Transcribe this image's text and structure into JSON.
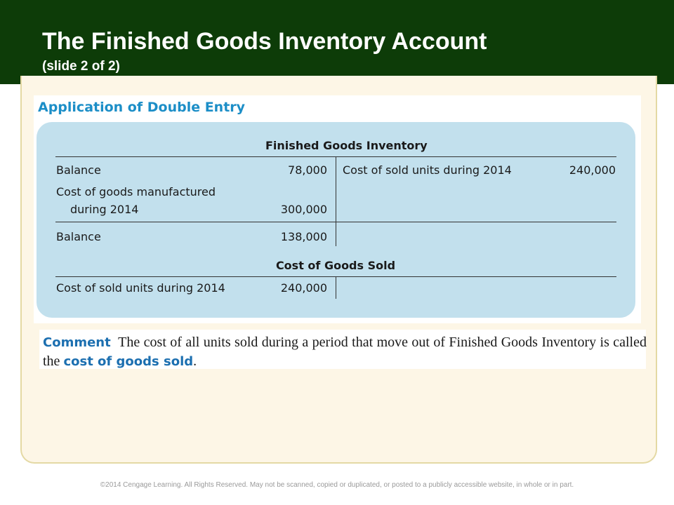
{
  "slide": {
    "title": "The Finished Goods Inventory Account",
    "subtitle": "(slide 2 of 2)"
  },
  "section_title": "Application of Double Entry",
  "finished_goods": {
    "title": "Finished Goods Inventory",
    "debit": [
      {
        "label": "Balance",
        "amount": "78,000"
      },
      {
        "label_line1": "Cost of goods manufactured",
        "label_line2": "during 2014",
        "amount": "300,000"
      }
    ],
    "credit": [
      {
        "label": "Cost of sold units during 2014",
        "amount": "240,000"
      }
    ],
    "ending": {
      "label": "Balance",
      "amount": "138,000"
    }
  },
  "cost_of_goods_sold": {
    "title": "Cost of Goods Sold",
    "debit": [
      {
        "label": "Cost of sold units during 2014",
        "amount": "240,000"
      }
    ]
  },
  "comment": {
    "label": "Comment",
    "text": "The cost of all units sold during a period that move out of Finished Goods Inventory is called the",
    "term": "cost of goods sold",
    "end": "."
  },
  "footer": "©2014 Cengage Learning. All Rights Reserved. May not be scanned, copied or duplicated, or posted to a publicly accessible website, in whole or in part.",
  "colors": {
    "header_bg": "#0d3c08",
    "accent_blue": "#1c8ec7",
    "table_bg": "#c2e0ed",
    "frame_bg": "#fdf6e6"
  }
}
